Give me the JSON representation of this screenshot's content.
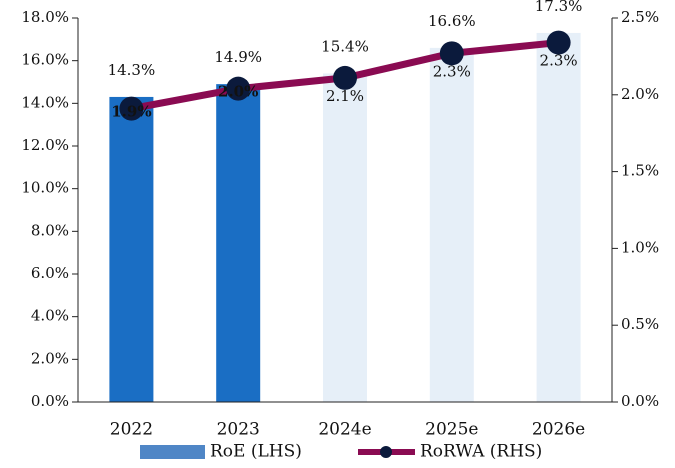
{
  "chart_data": {
    "type": "bar-line",
    "categories": [
      "2022",
      "2023",
      "2024e",
      "2025e",
      "2026e"
    ],
    "ylim": [
      0,
      18
    ],
    "yticks": [
      {
        "value": 0,
        "label": "0.0%"
      },
      {
        "value": 2,
        "label": "2.0%"
      },
      {
        "value": 4,
        "label": "4.0%"
      },
      {
        "value": 6,
        "label": "6.0%"
      },
      {
        "value": 8,
        "label": "8.0%"
      },
      {
        "value": 10,
        "label": "10.0%"
      },
      {
        "value": 12,
        "label": "12.0%"
      },
      {
        "value": 14,
        "label": "14.0%"
      },
      {
        "value": 16,
        "label": "16.0%"
      },
      {
        "value": 18,
        "label": "18.0%"
      }
    ],
    "y2lim": [
      0,
      2.5
    ],
    "y2ticks": [
      {
        "value": 0,
        "label": "0.0%"
      },
      {
        "value": 0.5,
        "label": "0.5%"
      },
      {
        "value": 1,
        "label": "1.0%"
      },
      {
        "value": 1.5,
        "label": "1.5%"
      },
      {
        "value": 2,
        "label": "2.0%"
      },
      {
        "value": 2.5,
        "label": "2.5%"
      }
    ],
    "series": [
      {
        "name": "RoE (LHS)",
        "type": "bar",
        "color": "#4f86c6",
        "colors": [
          "#1a6ec4",
          "#1a6ec4",
          "#e6eff8",
          "#e6eff8",
          "#e6eff8"
        ],
        "values": [
          14.3,
          14.9,
          15.4,
          16.6,
          17.3
        ],
        "value_labels": [
          "14.3%",
          "14.9%",
          "15.4%",
          "16.6%",
          "17.3%"
        ]
      },
      {
        "name": "RoRWA (RHS)",
        "type": "line",
        "axis": "y2",
        "color": "#8a0b52",
        "marker_color": "#0b1a3c",
        "values": [
          1.91,
          2.04,
          2.11,
          2.27,
          2.34
        ],
        "value_labels": [
          "1.9%",
          "2.0%",
          "2.1%",
          "2.3%",
          "2.3%"
        ]
      }
    ],
    "legend": "bottom"
  }
}
